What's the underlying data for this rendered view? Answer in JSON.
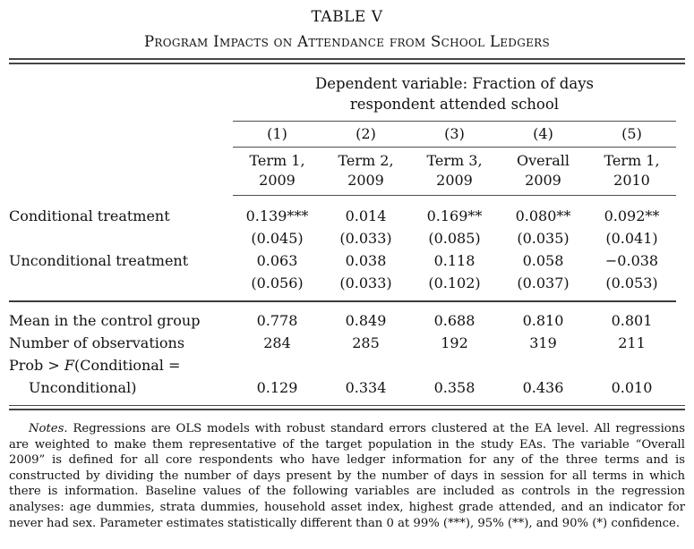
{
  "page": {
    "title": "TABLE V",
    "subtitle": "Program Impacts on Attendance from School Ledgers"
  },
  "table": {
    "spanner": {
      "line1": "Dependent variable: Fraction of days",
      "line2": "respondent attended school"
    },
    "column_numbers": [
      "(1)",
      "(2)",
      "(3)",
      "(4)",
      "(5)"
    ],
    "column_headers": [
      {
        "line1": "Term 1,",
        "line2": "2009"
      },
      {
        "line1": "Term 2,",
        "line2": "2009"
      },
      {
        "line1": "Term 3,",
        "line2": "2009"
      },
      {
        "line1": "Overall",
        "line2": "2009"
      },
      {
        "line1": "Term 1,",
        "line2": "2010"
      }
    ],
    "treatment_rows": [
      {
        "label": "Conditional treatment",
        "estimates": [
          "0.139***",
          "0.014",
          "0.169**",
          "0.080**",
          "0.092**"
        ],
        "std_errors": [
          "(0.045)",
          "(0.033)",
          "(0.085)",
          "(0.035)",
          "(0.041)"
        ]
      },
      {
        "label": "Unconditional treatment",
        "estimates": [
          "0.063",
          "0.038",
          "0.118",
          "0.058",
          "−0.038"
        ],
        "std_errors": [
          "(0.056)",
          "(0.033)",
          "(0.102)",
          "(0.037)",
          "(0.053)"
        ]
      }
    ],
    "summary_rows": [
      {
        "label": "Mean in the control group",
        "values": [
          "0.778",
          "0.849",
          "0.688",
          "0.810",
          "0.801"
        ]
      },
      {
        "label": "Number of observations",
        "values": [
          "284",
          "285",
          "192",
          "319",
          "211"
        ]
      }
    ],
    "prob_row": {
      "label_prefix": "Prob > ",
      "label_f": "F",
      "label_suffix": "(Conditional =",
      "label_line2": "Unconditional)",
      "values": [
        "0.129",
        "0.334",
        "0.358",
        "0.436",
        "0.010"
      ]
    }
  },
  "notes": {
    "lead": "Notes.",
    "body": " Regressions are OLS models with robust standard errors clustered at the EA level. All regressions are weighted to make them representative of the target population in the study EAs. The variable “Overall 2009” is defined for all core respondents who have ledger information for any of the three terms and is constructed by dividing the number of days present by the number of days in session for all terms in which there is information. Baseline values of the following variables are included as controls in the regression analyses: age dummies, strata dummies, household asset index, highest grade attended, and an indicator for never had sex. Parameter estimates statistically different than 0 at 99% (***), 95% (**), and 90% (*) confidence."
  }
}
